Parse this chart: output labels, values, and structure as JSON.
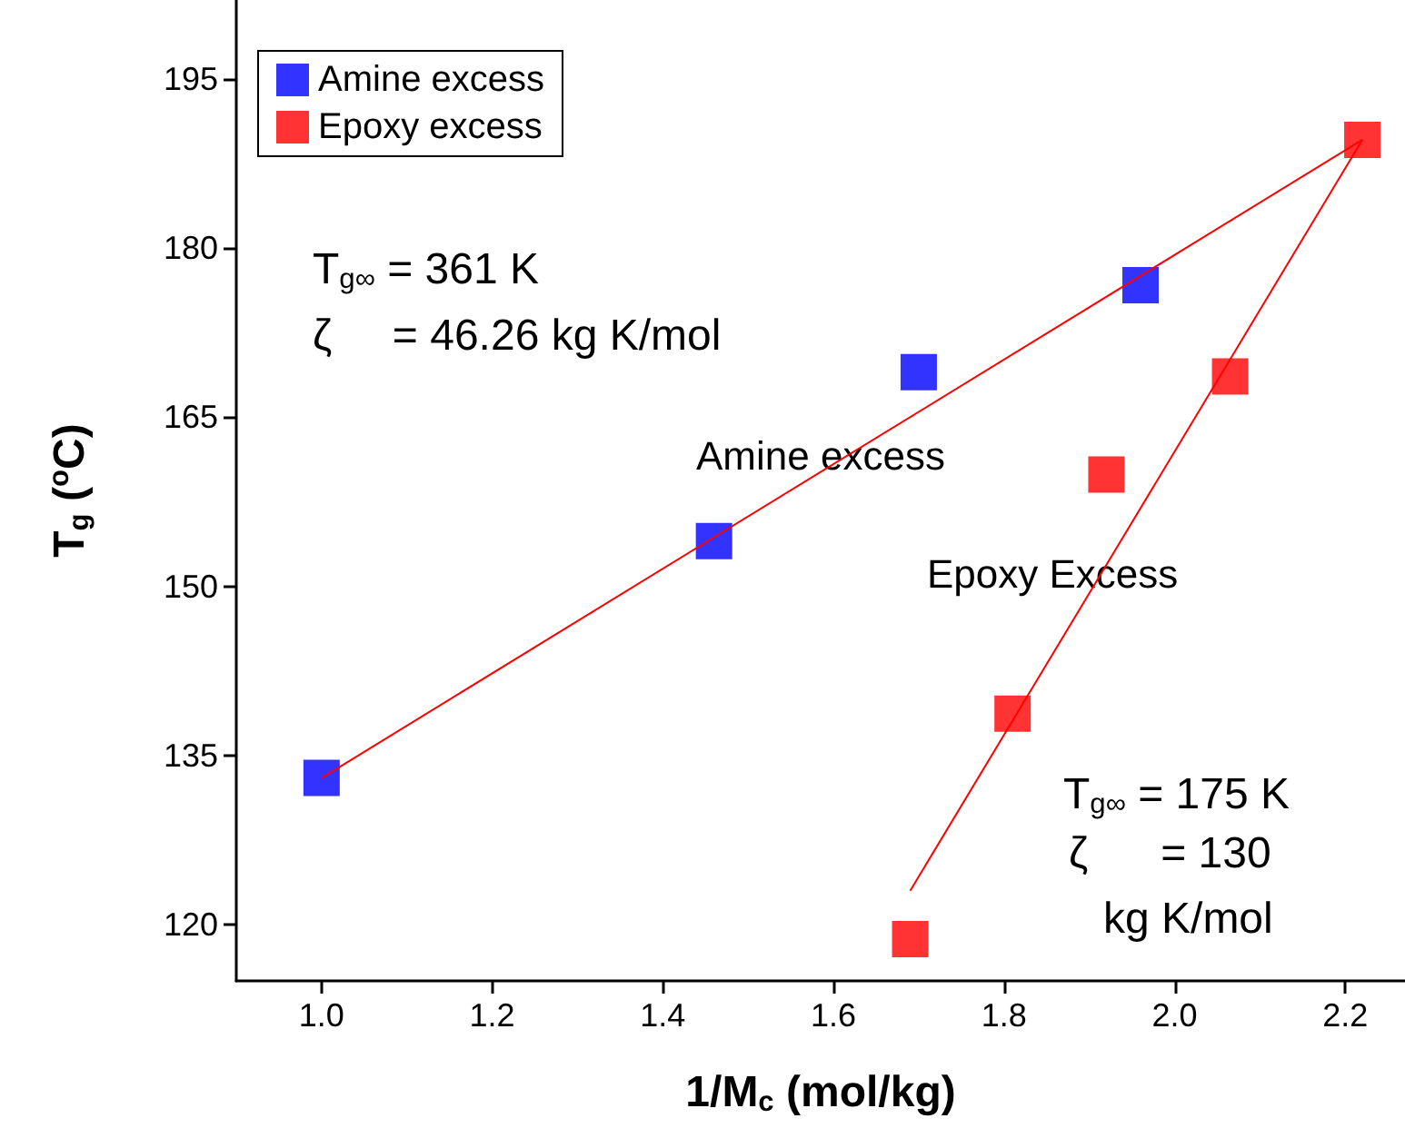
{
  "chart_data": {
    "type": "scatter",
    "xlabel": "1/M$_{c}$ (mol/kg)",
    "ylabel": "T$_{g}$ ($^{o}$C)",
    "xlim": [
      0.9,
      2.27
    ],
    "xticks": [
      {
        "value": 1,
        "label": "1.0"
      },
      {
        "value": 1.2,
        "label": "1.2"
      },
      {
        "value": 1.4,
        "label": "1.4"
      },
      {
        "value": 1.6,
        "label": "1.6"
      },
      {
        "value": 1.8,
        "label": "1.8"
      },
      {
        "value": 2,
        "label": "2.0"
      },
      {
        "value": 2.2,
        "label": "2.2"
      }
    ],
    "ylim": [
      115,
      202
    ],
    "yticks": [
      120,
      135,
      150,
      165,
      180,
      195
    ],
    "marker": "square",
    "legend": "top left",
    "grid": false,
    "series": [
      {
        "name": "Amine excess",
        "color": "#0000ff",
        "x": [
          1.0,
          1.46,
          1.7,
          1.96
        ],
        "values": [
          133,
          154,
          169,
          176.7
        ]
      },
      {
        "name": "Epoxy excess",
        "color": "#ff0000",
        "x": [
          1.69,
          1.81,
          1.92,
          2.065,
          2.22
        ],
        "values": [
          118.7,
          138.7,
          159.9,
          168.6,
          189.6
        ]
      },
      {
        "type": "line",
        "marker": "none",
        "color": "#ff0000",
        "x": [
          1.0,
          2.22
        ],
        "values": [
          133,
          189.6
        ]
      },
      {
        "type": "line",
        "marker": "none",
        "color": "#ff0000",
        "x": [
          1.69,
          2.22
        ],
        "values": [
          123,
          189.6
        ]
      }
    ],
    "annotations": [
      "Amine excess",
      "Epoxy Excess",
      "T$_{g∞}$ = 361 K",
      "ζ     = 46.26 kg K/mol",
      "T$_{g∞}$ = 175 K",
      "ζ      = 130",
      "kg K/mol"
    ]
  }
}
